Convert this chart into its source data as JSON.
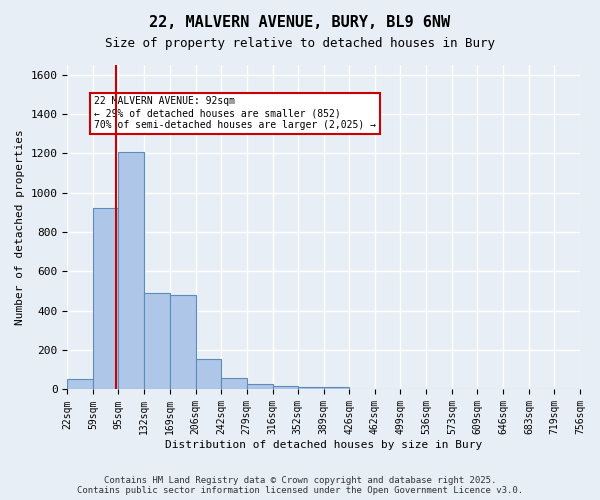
{
  "title_line1": "22, MALVERN AVENUE, BURY, BL9 6NW",
  "title_line2": "Size of property relative to detached houses in Bury",
  "xlabel": "Distribution of detached houses by size in Bury",
  "ylabel": "Number of detached properties",
  "bar_edges": [
    22,
    59,
    95,
    132,
    169,
    206,
    242,
    279,
    316,
    352,
    389,
    426,
    462,
    499,
    536,
    573,
    609,
    646,
    683,
    719,
    756
  ],
  "bar_heights": [
    55,
    925,
    1210,
    490,
    480,
    155,
    60,
    30,
    20,
    15,
    15,
    0,
    0,
    0,
    0,
    0,
    0,
    0,
    0,
    0
  ],
  "bar_color": "#aec6e8",
  "bar_edge_color": "#5b8db8",
  "property_value": 92,
  "vline_color": "#cc0000",
  "annotation_text": "22 MALVERN AVENUE: 92sqm\n← 29% of detached houses are smaller (852)\n70% of semi-detached houses are larger (2,025) →",
  "annotation_box_color": "#cc0000",
  "ylim": [
    0,
    1650
  ],
  "yticks": [
    0,
    200,
    400,
    600,
    800,
    1000,
    1200,
    1400,
    1600
  ],
  "background_color": "#e8eef5",
  "grid_color": "#ffffff",
  "footer_line1": "Contains HM Land Registry data © Crown copyright and database right 2025.",
  "footer_line2": "Contains public sector information licensed under the Open Government Licence v3.0."
}
